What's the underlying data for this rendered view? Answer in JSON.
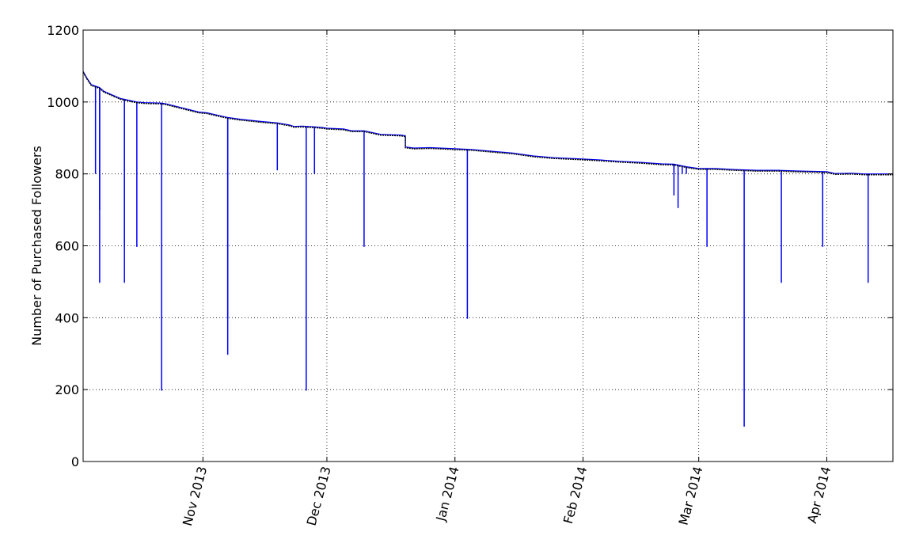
{
  "chart_data": {
    "type": "line",
    "title": "",
    "xlabel": "",
    "ylabel": "Number of Purchased Followers",
    "ylim": [
      0,
      1200
    ],
    "xlim": [
      "2013-10-03",
      "2014-04-17"
    ],
    "grid": true,
    "y_ticks": [
      0,
      200,
      400,
      600,
      800,
      1000,
      1200
    ],
    "x_ticks": [
      {
        "date": "2013-11-01",
        "label": "Nov 2013"
      },
      {
        "date": "2013-12-01",
        "label": "Dec 2013"
      },
      {
        "date": "2014-01-01",
        "label": "Jan 2014"
      },
      {
        "date": "2014-02-01",
        "label": "Feb 2014"
      },
      {
        "date": "2014-03-01",
        "label": "Mar 2014"
      },
      {
        "date": "2014-04-01",
        "label": "Apr 2014"
      }
    ],
    "series": [
      {
        "color": "#0000ff",
        "trend": [
          [
            "2013-10-03",
            1085
          ],
          [
            "2013-10-04",
            1065
          ],
          [
            "2013-10-05",
            1048
          ],
          [
            "2013-10-07",
            1040
          ],
          [
            "2013-10-08",
            1030
          ],
          [
            "2013-10-10",
            1020
          ],
          [
            "2013-10-12",
            1010
          ],
          [
            "2013-10-14",
            1005
          ],
          [
            "2013-10-16",
            1000
          ],
          [
            "2013-10-18",
            998
          ],
          [
            "2013-10-22",
            997
          ],
          [
            "2013-10-23",
            995
          ],
          [
            "2013-10-31",
            972
          ],
          [
            "2013-11-02",
            970
          ],
          [
            "2013-11-05",
            962
          ],
          [
            "2013-11-07",
            957
          ],
          [
            "2013-11-10",
            952
          ],
          [
            "2013-11-15",
            946
          ],
          [
            "2013-11-19",
            942
          ],
          [
            "2013-11-22",
            936
          ],
          [
            "2013-11-23",
            932
          ],
          [
            "2013-11-25",
            933
          ],
          [
            "2013-11-28",
            931
          ],
          [
            "2013-11-30",
            929
          ],
          [
            "2013-12-01",
            927
          ],
          [
            "2013-12-05",
            925
          ],
          [
            "2013-12-07",
            920
          ],
          [
            "2013-12-10",
            920
          ],
          [
            "2013-12-12",
            915
          ],
          [
            "2013-12-14",
            910
          ],
          [
            "2013-12-19",
            908
          ],
          [
            "2013-12-20",
            906
          ],
          [
            "2013-12-20",
            875
          ],
          [
            "2013-12-22",
            872
          ],
          [
            "2013-12-26",
            873
          ],
          [
            "2014-01-01",
            870
          ],
          [
            "2014-01-05",
            868
          ],
          [
            "2014-01-10",
            863
          ],
          [
            "2014-01-15",
            858
          ],
          [
            "2014-01-20",
            850
          ],
          [
            "2014-01-25",
            845
          ],
          [
            "2014-01-31",
            842
          ],
          [
            "2014-02-05",
            839
          ],
          [
            "2014-02-10",
            835
          ],
          [
            "2014-02-15",
            832
          ],
          [
            "2014-02-20",
            828
          ],
          [
            "2014-02-23",
            827
          ],
          [
            "2014-02-26",
            820
          ],
          [
            "2014-03-01",
            815
          ],
          [
            "2014-03-05",
            815
          ],
          [
            "2014-03-10",
            812
          ],
          [
            "2014-03-15",
            810
          ],
          [
            "2014-03-20",
            810
          ],
          [
            "2014-03-25",
            808
          ],
          [
            "2014-04-01",
            806
          ],
          [
            "2014-04-03",
            801
          ],
          [
            "2014-04-07",
            802
          ],
          [
            "2014-04-10",
            800
          ],
          [
            "2014-04-17",
            800
          ]
        ],
        "drops": [
          {
            "date": "2013-10-06",
            "low": 800
          },
          {
            "date": "2013-10-07",
            "low": 700
          },
          {
            "date": "2013-10-07",
            "low": 497
          },
          {
            "date": "2013-10-13",
            "low": 597
          },
          {
            "date": "2013-10-13",
            "low": 497
          },
          {
            "date": "2013-10-16",
            "low": 597
          },
          {
            "date": "2013-10-22",
            "low": 197
          },
          {
            "date": "2013-11-07",
            "low": 400
          },
          {
            "date": "2013-11-07",
            "low": 297
          },
          {
            "date": "2013-11-19",
            "low": 810
          },
          {
            "date": "2013-11-26",
            "low": 197
          },
          {
            "date": "2013-11-28",
            "low": 800
          },
          {
            "date": "2013-12-10",
            "low": 597
          },
          {
            "date": "2014-01-04",
            "low": 397
          },
          {
            "date": "2014-02-23",
            "low": 800
          },
          {
            "date": "2014-02-23",
            "low": 740
          },
          {
            "date": "2014-02-24",
            "low": 705
          },
          {
            "date": "2014-02-25",
            "low": 800
          },
          {
            "date": "2014-02-26",
            "low": 800
          },
          {
            "date": "2014-03-03",
            "low": 597
          },
          {
            "date": "2014-03-12",
            "low": 97
          },
          {
            "date": "2014-03-21",
            "low": 497
          },
          {
            "date": "2014-03-31",
            "low": 597
          },
          {
            "date": "2014-04-11",
            "low": 497
          }
        ]
      }
    ]
  }
}
